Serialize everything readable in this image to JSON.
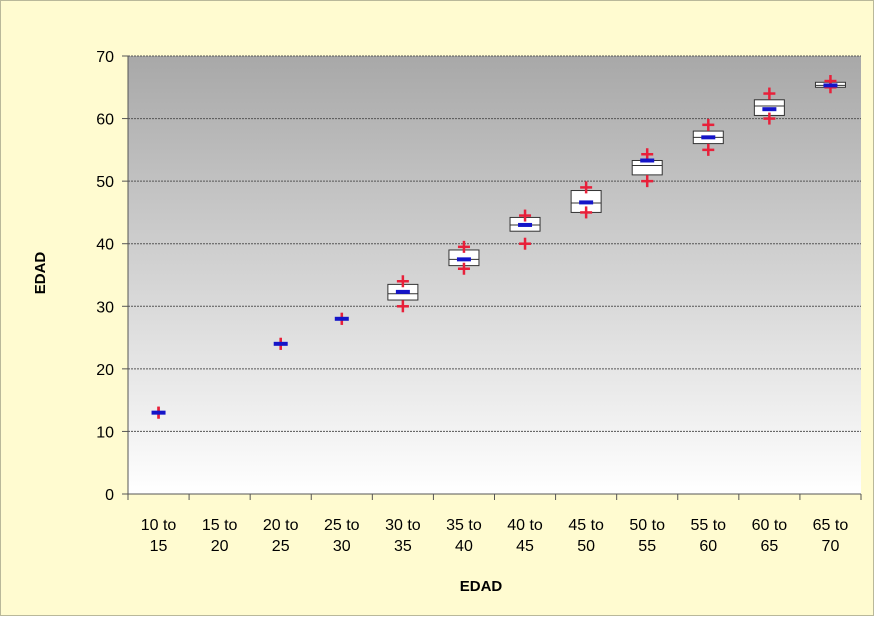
{
  "chart_data": {
    "type": "box",
    "xlabel": "EDAD",
    "ylabel": "EDAD",
    "ylim": [
      0,
      70
    ],
    "yticks": [
      0,
      10,
      20,
      30,
      40,
      50,
      60,
      70
    ],
    "grid": true,
    "categories": [
      [
        "10 to",
        "15"
      ],
      [
        "15 to",
        "20"
      ],
      [
        "20 to",
        "25"
      ],
      [
        "25 to",
        "30"
      ],
      [
        "30 to",
        "35"
      ],
      [
        "35 to",
        "40"
      ],
      [
        "40 to",
        "45"
      ],
      [
        "45 to",
        "50"
      ],
      [
        "50 to",
        "55"
      ],
      [
        "55 to",
        "60"
      ],
      [
        "60 to",
        "65"
      ],
      [
        "65 to",
        "70"
      ]
    ],
    "boxes": [
      {
        "min": 13,
        "q1": 13,
        "median": 13,
        "q3": 13,
        "max": 13,
        "mean": 13
      },
      null,
      {
        "min": 24,
        "q1": 24,
        "median": 24,
        "q3": 24,
        "max": 24,
        "mean": 24
      },
      {
        "min": 28,
        "q1": 28,
        "median": 28,
        "q3": 28,
        "max": 28,
        "mean": 28
      },
      {
        "min": 30,
        "q1": 31,
        "median": 32,
        "q3": 33.5,
        "max": 34,
        "mean": 32.3
      },
      {
        "min": 36,
        "q1": 36.5,
        "median": 37.5,
        "q3": 39,
        "max": 39.5,
        "mean": 37.5
      },
      {
        "min": 40,
        "q1": 42,
        "median": 43,
        "q3": 44.2,
        "max": 44.5,
        "mean": 43
      },
      {
        "min": 45,
        "q1": 45,
        "median": 46.5,
        "q3": 48.5,
        "max": 49,
        "mean": 46.6
      },
      {
        "min": 50,
        "q1": 51,
        "median": 52.5,
        "q3": 53.3,
        "max": 54.3,
        "mean": 53.3
      },
      {
        "min": 55,
        "q1": 56,
        "median": 57,
        "q3": 58,
        "max": 59,
        "mean": 57
      },
      {
        "min": 60,
        "q1": 60.5,
        "median": 62,
        "q3": 63,
        "max": 64,
        "mean": 61.5
      },
      {
        "min": 65,
        "q1": 65,
        "median": 65.3,
        "q3": 65.8,
        "max": 66,
        "mean": 65.3
      }
    ],
    "colors": {
      "extreme_marker": "#e8203a",
      "mean_marker": "#1515c8",
      "box_border": "#333333",
      "box_fill": "#ffffff",
      "gridline": "#555555",
      "plot_gradient_top": "#a8a8a8",
      "plot_gradient_bottom": "#ffffff",
      "frame_background": "#fffbd0"
    }
  }
}
